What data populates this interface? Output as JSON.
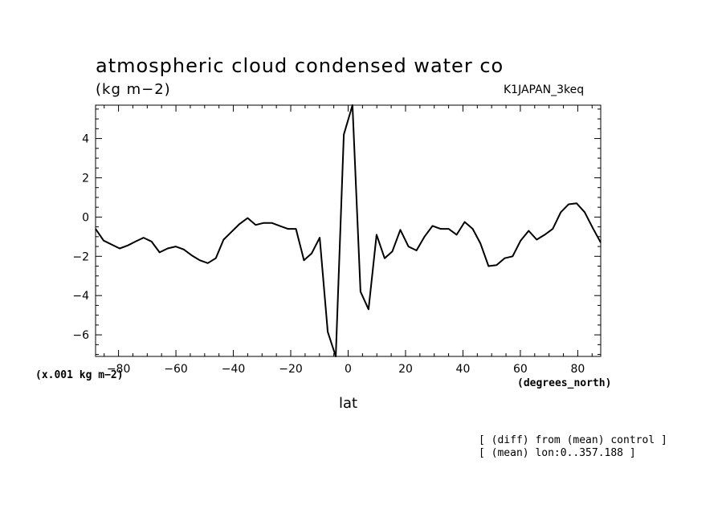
{
  "chart_data": {
    "type": "line",
    "title": "atmospheric cloud condensed water co",
    "units_label": "(kg m−2)",
    "dataset_label": "K1JAPAN_3keq",
    "scale_label": "(x.001 kg m−2)",
    "x_units_label": "(degrees_north)",
    "xlabel": "lat",
    "notes": [
      "[ (diff) from (mean) control ]",
      "[ (mean) lon:0..357.188 ]"
    ],
    "xlim": [
      -88,
      88
    ],
    "ylim": [
      -7.1,
      5.7
    ],
    "x_ticks": [
      -80,
      -60,
      -40,
      -20,
      0,
      20,
      40,
      60,
      80
    ],
    "y_ticks": [
      -6,
      -4,
      -2,
      0,
      2,
      4
    ],
    "series": [
      {
        "x": [
          -88,
          -85.2,
          -82.4,
          -79.6,
          -76.8,
          -74.1,
          -71.3,
          -68.5,
          -65.7,
          -62.9,
          -60.1,
          -57.3,
          -54.5,
          -51.7,
          -48.9,
          -46.1,
          -43.4,
          -40.6,
          -37.8,
          -35,
          -32.2,
          -29.4,
          -26.6,
          -23.8,
          -21,
          -18.2,
          -15.4,
          -12.7,
          -9.9,
          -7.1,
          -4.3,
          -1.5,
          1.5,
          4.3,
          7.1,
          9.9,
          12.7,
          15.4,
          18.2,
          21,
          23.8,
          26.6,
          29.4,
          32.2,
          35,
          37.8,
          40.6,
          43.4,
          46.1,
          48.9,
          51.7,
          54.5,
          57.3,
          60.1,
          62.9,
          65.7,
          68.5,
          71.3,
          74.1,
          76.8,
          79.6,
          82.4,
          85.2,
          88
        ],
        "values": [
          -0.6,
          -1.2,
          -1.4,
          -1.6,
          -1.45,
          -1.25,
          -1.05,
          -1.25,
          -1.8,
          -1.6,
          -1.5,
          -1.65,
          -1.95,
          -2.2,
          -2.35,
          -2.1,
          -1.15,
          -0.75,
          -0.35,
          -0.05,
          -0.4,
          -0.3,
          -0.3,
          -0.45,
          -0.6,
          -0.6,
          -2.2,
          -1.85,
          -1.05,
          -5.85,
          -7.1,
          4.2,
          5.7,
          -3.8,
          -4.7,
          -0.9,
          -2.1,
          -1.75,
          -0.65,
          -1.5,
          -1.7,
          -1.0,
          -0.45,
          -0.6,
          -0.6,
          -0.9,
          -0.25,
          -0.6,
          -1.35,
          -2.5,
          -2.45,
          -2.1,
          -2.0,
          -1.2,
          -0.7,
          -1.15,
          -0.9,
          -0.6,
          0.25,
          0.65,
          0.7,
          0.25,
          -0.55,
          -1.3
        ]
      }
    ],
    "grid": false
  }
}
